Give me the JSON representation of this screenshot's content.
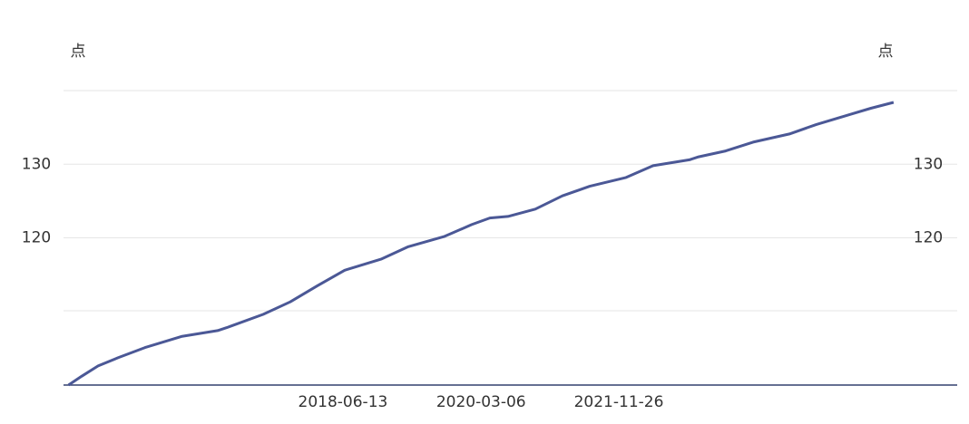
{
  "chart_data": {
    "type": "line",
    "y_label": "点",
    "y2_label": "点",
    "x": [
      "2015-01-05",
      "2015-03-06",
      "2015-05-20",
      "2015-08-19",
      "2015-12-21",
      "2016-06-04",
      "2016-11-17",
      "2016-12-29",
      "2017-06-13",
      "2017-10-15",
      "2018-02-17",
      "2018-06-21",
      "2018-12-04",
      "2019-04-08",
      "2019-09-21",
      "2020-01-23",
      "2020-04-15",
      "2020-07-07",
      "2020-11-09",
      "2021-03-13",
      "2021-07-16",
      "2021-12-29",
      "2022-05-02",
      "2022-10-15",
      "2022-11-26",
      "2023-03-30",
      "2023-08-02",
      "2024-01-15",
      "2024-05-18",
      "2024-09-20",
      "2025-01-22",
      "2025-05-06"
    ],
    "series": [
      {
        "color": "#4b5896",
        "values": [
          100.0,
          101.2,
          102.6,
          103.7,
          105.1,
          106.6,
          107.4,
          107.8,
          109.6,
          111.3,
          113.5,
          115.6,
          117.1,
          118.8,
          120.2,
          121.8,
          122.7,
          122.9,
          123.9,
          125.7,
          127.0,
          128.2,
          129.8,
          130.6,
          131.0,
          131.8,
          133.0,
          134.1,
          135.4,
          136.5,
          137.6,
          138.4
        ]
      }
    ],
    "xlim": [
      "2014-12-13",
      "2026-02-21"
    ],
    "xticks": [
      "2018-06-13",
      "2020-03-06",
      "2021-11-26"
    ],
    "ylim": [
      100,
      140
    ],
    "yticks": [
      120,
      130
    ],
    "y2lim": [
      100,
      140
    ],
    "y2ticks": [
      120,
      130
    ],
    "grid": true
  }
}
